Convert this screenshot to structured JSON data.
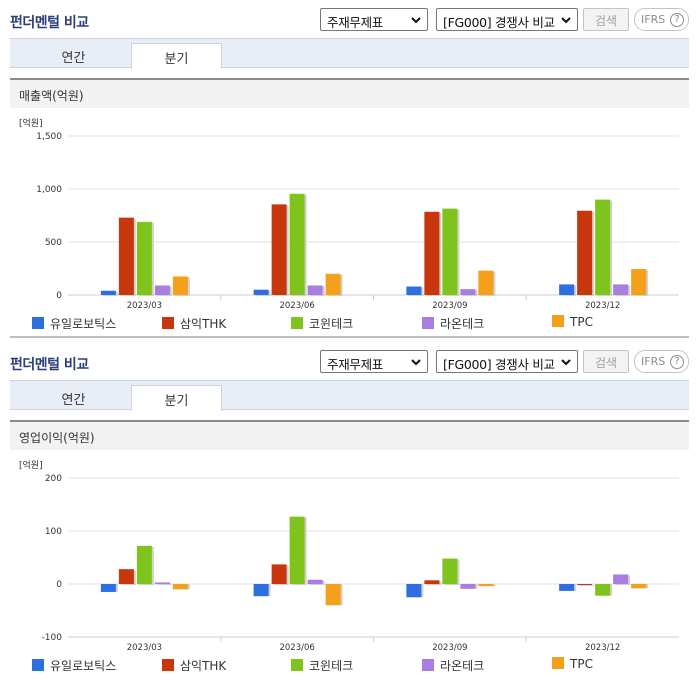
{
  "panels": [
    {
      "title": "펀더멘털 비교",
      "select1": "주재무제표",
      "select2": "[FG000] 경쟁사 비교",
      "search_label": "검색",
      "ifrs_label": "IFRS",
      "ifrs_help": "?",
      "tabs": [
        "연간",
        "분기"
      ],
      "active_tab": "분기",
      "section_title": "매출액(억원)",
      "unit_label": "[억원]",
      "legend": [
        "유일로보틱스",
        "삼익THK",
        "코윈테크",
        "라온테크",
        "TPC"
      ]
    },
    {
      "title": "펀더멘털 비교",
      "select1": "주재무제표",
      "select2": "[FG000] 경쟁사 비교",
      "search_label": "검색",
      "ifrs_label": "IFRS",
      "ifrs_help": "?",
      "tabs": [
        "연간",
        "분기"
      ],
      "active_tab": "분기",
      "section_title": "영업이익(억원)",
      "unit_label": "[억원]",
      "legend": [
        "유일로보틱스",
        "삼익THK",
        "코윈테크",
        "라온테크",
        "TPC"
      ]
    }
  ],
  "colors": [
    "#2d6fe0",
    "#c8360e",
    "#7ec41c",
    "#a87ee0",
    "#f5a01a"
  ],
  "chart_data": [
    {
      "type": "bar",
      "title": "매출액(억원)",
      "ylabel": "[억원]",
      "categories": [
        "2023/03",
        "2023/06",
        "2023/09",
        "2023/12"
      ],
      "ylim": [
        0,
        1500
      ],
      "yticks": [
        0,
        500,
        1000,
        1500
      ],
      "ytick_labels": [
        "0",
        "500",
        "1,000",
        "1,500"
      ],
      "series": [
        {
          "name": "유일로보틱스",
          "values": [
            40,
            50,
            80,
            100
          ]
        },
        {
          "name": "삼익THK",
          "values": [
            730,
            855,
            785,
            795
          ]
        },
        {
          "name": "코윈테크",
          "values": [
            690,
            955,
            815,
            900
          ]
        },
        {
          "name": "라온테크",
          "values": [
            90,
            90,
            55,
            100
          ]
        },
        {
          "name": "TPC",
          "values": [
            175,
            200,
            230,
            245
          ]
        }
      ]
    },
    {
      "type": "bar",
      "title": "영업이익(억원)",
      "ylabel": "[억원]",
      "categories": [
        "2023/03",
        "2023/06",
        "2023/09",
        "2023/12"
      ],
      "ylim": [
        -100,
        200
      ],
      "yticks": [
        -100,
        0,
        100,
        200
      ],
      "ytick_labels": [
        "-100",
        "0",
        "100",
        "200"
      ],
      "series": [
        {
          "name": "유일로보틱스",
          "values": [
            -15,
            -23,
            -25,
            -13
          ]
        },
        {
          "name": "삼익THK",
          "values": [
            28,
            37,
            7,
            0
          ]
        },
        {
          "name": "코윈테크",
          "values": [
            72,
            127,
            48,
            -22
          ]
        },
        {
          "name": "라온테크",
          "values": [
            3,
            8,
            -9,
            18
          ]
        },
        {
          "name": "TPC",
          "values": [
            -10,
            -40,
            -4,
            -8
          ]
        }
      ]
    }
  ]
}
